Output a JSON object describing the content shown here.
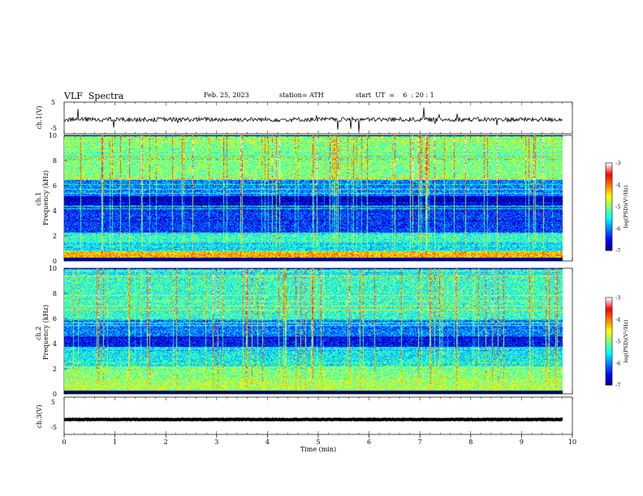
{
  "header": {
    "title": "VLF  Spectra",
    "date": "Feb. 25, 2023",
    "station": "station= ATH",
    "start": "start  UT  =    6  : 20 : 1"
  },
  "colors": {
    "spectrogram": [
      "#00007f",
      "#0000ff",
      "#0080ff",
      "#00ffff",
      "#80ff80",
      "#ffff00",
      "#ff8000",
      "#ff0000",
      "#ffffff"
    ],
    "trace": "#000000"
  },
  "chart_data": [
    {
      "type": "line",
      "ylabel": "ch.1(V)",
      "ylim": [
        -5,
        5
      ],
      "yticks": [
        "5",
        "-5"
      ],
      "series": [
        {
          "description": "noisy waveform centered near -0.5 V with occasional spikes",
          "mean": -0.5
        }
      ]
    },
    {
      "type": "heatmap",
      "ylabel": "ch.1\nFrequency  (kHz)",
      "ylim": [
        0,
        10
      ],
      "yticks": [
        "0",
        "2",
        "4",
        "6",
        "8",
        "10"
      ],
      "colorbar": {
        "label": "log(PSD)(V²/Hz)",
        "range": [
          -7,
          -3
        ],
        "ticks": [
          "-3",
          "-4",
          "-5",
          "-6",
          "-7"
        ]
      },
      "bands_khz": [
        {
          "from": 0,
          "to": 0.3,
          "level": -7
        },
        {
          "from": 0.3,
          "to": 0.8,
          "level": -4.2
        },
        {
          "from": 0.8,
          "to": 1.5,
          "level": -5.6
        },
        {
          "from": 1.5,
          "to": 2.3,
          "level": -5.3
        },
        {
          "from": 2.3,
          "to": 4.5,
          "level": -6.3
        },
        {
          "from": 4.5,
          "to": 5.2,
          "level": -6.8
        },
        {
          "from": 5.2,
          "to": 6.5,
          "level": -6.0
        },
        {
          "from": 6.5,
          "to": 10,
          "level": -5.0
        }
      ]
    },
    {
      "type": "heatmap",
      "ylabel": "ch.2\nFrequency  (kHz)",
      "ylim": [
        0,
        10
      ],
      "yticks": [
        "0",
        "2",
        "4",
        "6",
        "8",
        "10"
      ],
      "colorbar": {
        "label": "log(PSD)(V²/Hz)",
        "range": [
          -7,
          -3
        ],
        "ticks": [
          "-3",
          "-4",
          "-5",
          "-6",
          "-7"
        ]
      },
      "bands_khz": [
        {
          "from": 0,
          "to": 0.3,
          "level": -7
        },
        {
          "from": 0.3,
          "to": 1.2,
          "level": -4.8
        },
        {
          "from": 1.2,
          "to": 2.2,
          "level": -5.0
        },
        {
          "from": 2.2,
          "to": 3.8,
          "level": -5.5
        },
        {
          "from": 3.8,
          "to": 4.6,
          "level": -6.5
        },
        {
          "from": 4.6,
          "to": 6.0,
          "level": -6.0
        },
        {
          "from": 6.0,
          "to": 10,
          "level": -5.3
        }
      ]
    },
    {
      "type": "line",
      "ylabel": "ch.3(V)",
      "ylim": [
        -5,
        5
      ],
      "yticks": [
        "5",
        "-5"
      ],
      "series": [
        {
          "description": "flat thick trace near -1 V",
          "mean": -1
        }
      ]
    }
  ],
  "xaxis": {
    "label": "Time  (min)",
    "range": [
      0,
      10
    ],
    "ticks": [
      "0",
      "1",
      "2",
      "3",
      "4",
      "5",
      "6",
      "7",
      "8",
      "9",
      "10"
    ],
    "data_end_min": 9.82
  }
}
